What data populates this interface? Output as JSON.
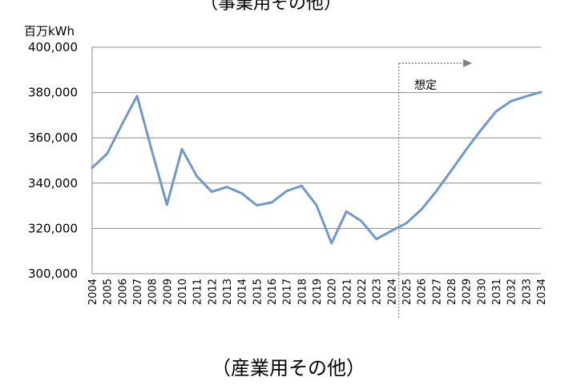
{
  "top_fragment": "（事業用その他）",
  "caption": "（産業用その他）",
  "chart_data": {
    "type": "line",
    "unit_label": "百万kWh",
    "annotation": "想定",
    "forecast_start": "2025",
    "ylim": [
      300000,
      400000
    ],
    "y_ticks": [
      "300,000",
      "320,000",
      "340,000",
      "360,000",
      "380,000",
      "400,000"
    ],
    "y_tick_values": [
      300000,
      320000,
      340000,
      360000,
      380000,
      400000
    ],
    "grid": true,
    "x": [
      "2004",
      "2005",
      "2006",
      "2007",
      "2008",
      "2009",
      "2010",
      "2011",
      "2012",
      "2013",
      "2014",
      "2015",
      "2016",
      "2017",
      "2018",
      "2019",
      "2020",
      "2021",
      "2022",
      "2023",
      "2024",
      "2025",
      "2026",
      "2027",
      "2028",
      "2029",
      "2030",
      "2031",
      "2032",
      "2033",
      "2034"
    ],
    "series": [
      {
        "color": "#6f98cd",
        "values": [
          346800,
          353000,
          366000,
          378500,
          354000,
          330500,
          355000,
          343000,
          336200,
          338300,
          335500,
          330200,
          331500,
          336500,
          338800,
          330200,
          313500,
          327500,
          323200,
          315300,
          318900,
          322300,
          328300,
          336400,
          345500,
          354800,
          363500,
          371700,
          376200,
          378300,
          380200
        ]
      }
    ],
    "colors": {
      "line": "#6f98cd",
      "grid": "#8c8c8c",
      "axis": "#8c8c8c",
      "arrow": "#7f7f7f"
    }
  }
}
